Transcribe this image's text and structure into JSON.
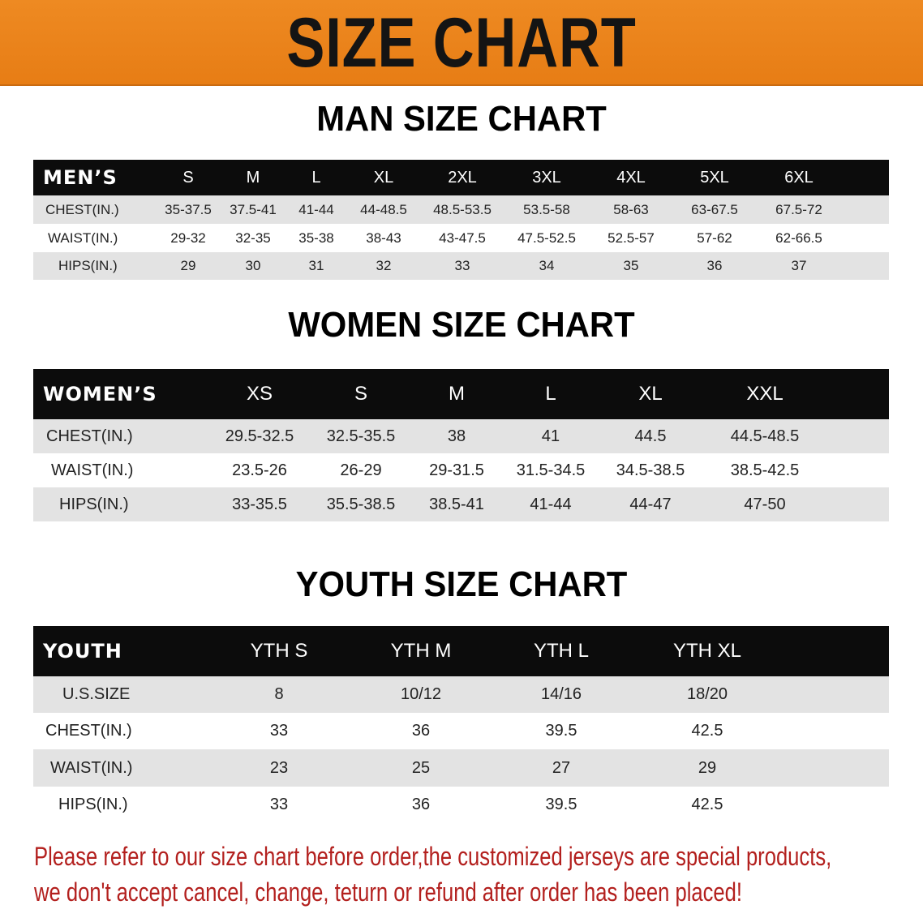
{
  "banner": {
    "title": "SIZE CHART",
    "color": "#e98118"
  },
  "men": {
    "title": "MAN SIZE CHART",
    "header": [
      "MEN’S",
      "S",
      "M",
      "L",
      "XL",
      "2XL",
      "3XL",
      "4XL",
      "5XL",
      "6XL"
    ],
    "rows": [
      [
        "CHEST(IN.)",
        "35-37.5",
        "37.5-41",
        "41-44",
        "44-48.5",
        "48.5-53.5",
        "53.5-58",
        "58-63",
        "63-67.5",
        "67.5-72"
      ],
      [
        "WAIST(IN.)",
        "29-32",
        "32-35",
        "35-38",
        "38-43",
        "43-47.5",
        "47.5-52.5",
        "52.5-57",
        "57-62",
        "62-66.5"
      ],
      [
        "HIPS(IN.)",
        "29",
        "30",
        "31",
        "32",
        "33",
        "34",
        "35",
        "36",
        "37"
      ]
    ]
  },
  "women": {
    "title": "WOMEN SIZE CHART",
    "header": [
      "WOMEN’S",
      "XS",
      "S",
      "M",
      "L",
      "XL",
      "XXL"
    ],
    "rows": [
      [
        "CHEST(IN.)",
        "29.5-32.5",
        "32.5-35.5",
        "38",
        "41",
        "44.5",
        "44.5-48.5"
      ],
      [
        "WAIST(IN.)",
        "23.5-26",
        "26-29",
        "29-31.5",
        "31.5-34.5",
        "34.5-38.5",
        "38.5-42.5"
      ],
      [
        "HIPS(IN.)",
        "33-35.5",
        "35.5-38.5",
        "38.5-41",
        "41-44",
        "44-47",
        "47-50"
      ]
    ]
  },
  "youth": {
    "title": "YOUTH SIZE CHART",
    "header": [
      "YOUTH",
      "YTH S",
      "YTH M",
      "YTH L",
      "YTH XL"
    ],
    "rows": [
      [
        "U.S.SIZE",
        "8",
        "10/12",
        "14/16",
        "18/20"
      ],
      [
        "CHEST(IN.)",
        "33",
        "36",
        "39.5",
        "42.5"
      ],
      [
        "WAIST(IN.)",
        "23",
        "25",
        "27",
        "29"
      ],
      [
        "HIPS(IN.)",
        "33",
        "36",
        "39.5",
        "42.5"
      ]
    ]
  },
  "notice": {
    "line1": "Please refer to our size chart before order,the customized jerseys are special products,",
    "line2": "we don't accept cancel, change, teturn or refund after order has been placed!",
    "color": "#b3201e"
  }
}
